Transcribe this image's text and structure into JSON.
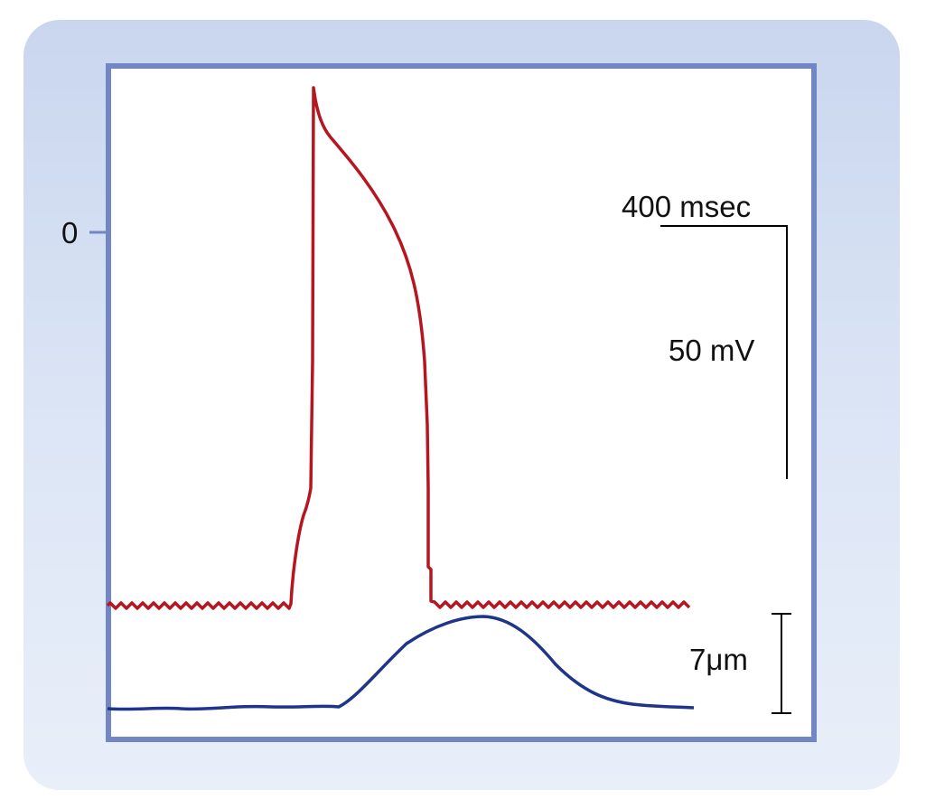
{
  "figure": {
    "zero_label": "0",
    "time_scale_label": "400 msec",
    "voltage_scale_label": "50 mV",
    "length_scale_label": "7μm",
    "colors": {
      "action_potential": "#b5161f",
      "cell_length": "#1e3589",
      "frame": "#7286c3",
      "scale_bars": "#000000"
    }
  }
}
